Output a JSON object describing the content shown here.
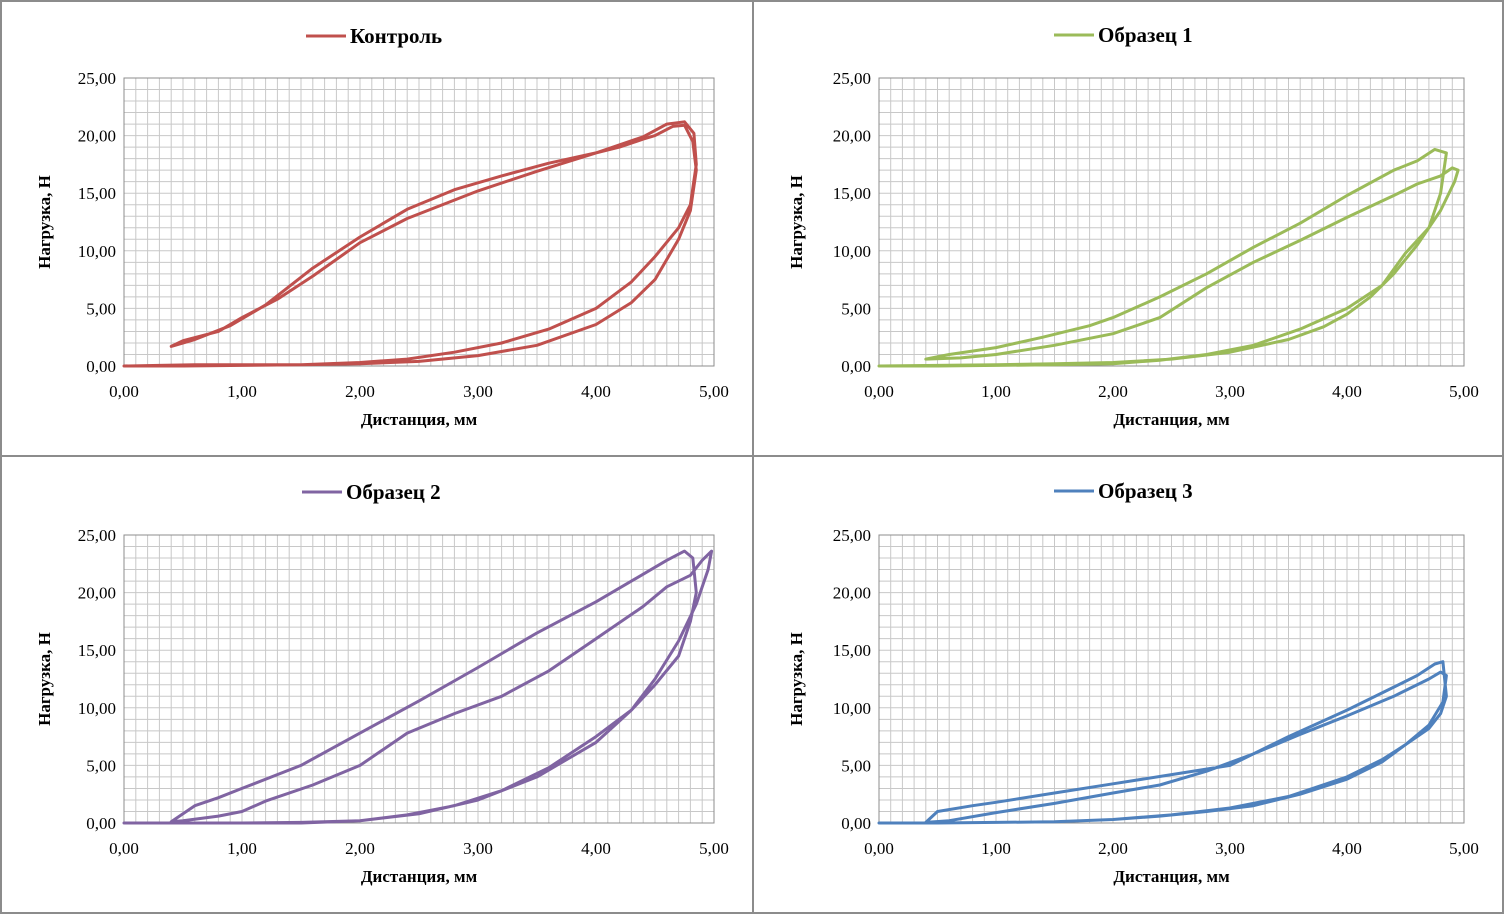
{
  "chart_data": [
    {
      "type": "line",
      "title": "",
      "xlabel": "Дистанция, мм",
      "ylabel": "Нагрузка, Н",
      "xlim": [
        0,
        5
      ],
      "ylim": [
        0,
        25
      ],
      "x_tick_labels": [
        "0,00",
        "1,00",
        "2,00",
        "3,00",
        "4,00",
        "5,00"
      ],
      "y_tick_labels": [
        "0,00",
        "5,00",
        "10,00",
        "15,00",
        "20,00",
        "25,00"
      ],
      "grid": true,
      "legend": "top",
      "color": "#c0504d",
      "series": [
        {
          "name": "Контроль",
          "x": [
            0,
            0.3,
            0.6,
            1.0,
            1.5,
            2.0,
            2.5,
            3.0,
            3.5,
            4.0,
            4.3,
            4.5,
            4.7,
            4.8,
            4.85,
            4.82,
            4.75,
            4.65,
            4.5,
            4.4,
            4.2,
            4.0,
            3.6,
            3.2,
            2.8,
            2.4,
            2.0,
            1.6,
            1.2,
            0.9,
            0.6,
            0.4,
            0.5,
            0.8,
            1.0,
            1.3,
            1.6,
            2.0,
            2.4,
            3.0,
            3.5,
            4.0,
            4.4,
            4.6,
            4.75,
            4.83,
            4.85,
            4.8,
            4.7,
            4.5,
            4.3,
            4.0,
            3.6,
            3.2,
            2.8,
            2.4,
            2.0,
            1.5,
            1.0,
            0.5,
            0
          ],
          "y": [
            0,
            0.05,
            0.1,
            0.1,
            0.1,
            0.2,
            0.4,
            0.9,
            1.8,
            3.6,
            5.5,
            7.5,
            11.0,
            13.5,
            17.0,
            19.5,
            20.9,
            20.8,
            20.0,
            19.7,
            19.0,
            18.5,
            17.6,
            16.5,
            15.3,
            13.6,
            11.2,
            8.5,
            5.3,
            3.5,
            2.3,
            1.7,
            2.2,
            3.0,
            4.2,
            5.8,
            7.8,
            10.7,
            12.8,
            15.2,
            16.9,
            18.5,
            19.9,
            21.0,
            21.2,
            20.2,
            17.5,
            14.0,
            12.0,
            9.5,
            7.3,
            5.0,
            3.2,
            2.0,
            1.2,
            0.6,
            0.3,
            0.1,
            0.05,
            0,
            0
          ]
        }
      ]
    },
    {
      "type": "line",
      "title": "",
      "xlabel": "Дистанция, мм",
      "ylabel": "Нагрузка, Н",
      "xlim": [
        0,
        5
      ],
      "ylim": [
        0,
        25
      ],
      "x_tick_labels": [
        "0,00",
        "1,00",
        "2,00",
        "3,00",
        "4,00",
        "5,00"
      ],
      "y_tick_labels": [
        "0,00",
        "5,00",
        "10,00",
        "15,00",
        "20,00",
        "25,00"
      ],
      "grid": true,
      "legend": "top",
      "color": "#9bbb59",
      "series": [
        {
          "name": "Образец 1",
          "x": [
            0,
            0.5,
            1.0,
            1.5,
            2.0,
            2.5,
            3.0,
            3.5,
            3.8,
            4.0,
            4.2,
            4.4,
            4.6,
            4.8,
            4.92,
            4.95,
            4.9,
            4.8,
            4.6,
            4.4,
            4.0,
            3.6,
            3.2,
            2.8,
            2.4,
            2.0,
            1.5,
            1.0,
            0.7,
            0.4,
            0.6,
            1.0,
            1.4,
            1.8,
            2.0,
            2.4,
            2.8,
            3.2,
            3.6,
            4.0,
            4.4,
            4.6,
            4.75,
            4.85,
            4.8,
            4.7,
            4.5,
            4.3,
            4.0,
            3.6,
            3.2,
            2.8,
            2.4,
            2.0,
            1.5,
            1.0,
            0.5,
            0
          ],
          "y": [
            0,
            0.05,
            0.1,
            0.2,
            0.3,
            0.6,
            1.2,
            2.3,
            3.4,
            4.5,
            6.0,
            8.0,
            10.5,
            13.5,
            16.0,
            17.0,
            17.2,
            16.5,
            15.8,
            14.8,
            12.9,
            10.9,
            9.0,
            6.8,
            4.2,
            2.8,
            1.8,
            1.0,
            0.7,
            0.6,
            1.0,
            1.6,
            2.5,
            3.5,
            4.2,
            6.0,
            8.0,
            10.3,
            12.4,
            14.8,
            17.0,
            17.8,
            18.8,
            18.5,
            15.0,
            12.0,
            9.8,
            7.0,
            5.0,
            3.2,
            1.8,
            1.0,
            0.5,
            0.2,
            0.1,
            0.05,
            0,
            0
          ]
        }
      ]
    },
    {
      "type": "line",
      "title": "",
      "xlabel": "Дистанция, мм",
      "ylabel": "Нагрузка, Н",
      "xlim": [
        0,
        5
      ],
      "ylim": [
        0,
        25
      ],
      "x_tick_labels": [
        "0,00",
        "1,00",
        "2,00",
        "3,00",
        "4,00",
        "5,00"
      ],
      "y_tick_labels": [
        "0,00",
        "5,00",
        "10,00",
        "15,00",
        "20,00",
        "25,00"
      ],
      "grid": true,
      "legend": "top",
      "color": "#8064a2",
      "series": [
        {
          "name": "Образец 2",
          "x": [
            0,
            0.3,
            0.6,
            1.0,
            1.5,
            2.0,
            2.5,
            3.0,
            3.5,
            4.0,
            4.3,
            4.5,
            4.7,
            4.85,
            4.95,
            4.98,
            4.9,
            4.8,
            4.6,
            4.4,
            4.0,
            3.6,
            3.2,
            2.8,
            2.4,
            2.0,
            1.6,
            1.2,
            1.0,
            0.8,
            0.5,
            0.4,
            0.6,
            0.8,
            1.0,
            1.5,
            2.0,
            2.5,
            3.0,
            3.5,
            4.0,
            4.4,
            4.6,
            4.75,
            4.82,
            4.85,
            4.8,
            4.7,
            4.5,
            4.3,
            4.0,
            3.6,
            3.2,
            2.8,
            2.4,
            2.0,
            1.5,
            1.0,
            0.5,
            0
          ],
          "y": [
            0,
            0,
            0,
            0,
            0,
            0.2,
            0.8,
            2.0,
            4.0,
            7.0,
            9.8,
            12.5,
            15.8,
            19.0,
            22.0,
            23.6,
            22.8,
            21.5,
            20.5,
            18.8,
            16.0,
            13.2,
            11.0,
            9.5,
            7.8,
            5.0,
            3.3,
            1.9,
            1.0,
            0.6,
            0.2,
            0.1,
            1.5,
            2.2,
            3.0,
            5.0,
            7.8,
            10.6,
            13.5,
            16.5,
            19.2,
            21.6,
            22.8,
            23.6,
            23.0,
            20.0,
            17.5,
            14.5,
            12.0,
            9.8,
            7.5,
            4.8,
            2.8,
            1.5,
            0.7,
            0.2,
            0.05,
            0,
            0,
            0
          ]
        }
      ]
    },
    {
      "type": "line",
      "title": "",
      "xlabel": "Дистанция, мм",
      "ylabel": "Нагрузка, Н",
      "xlim": [
        0,
        5
      ],
      "ylim": [
        0,
        25
      ],
      "x_tick_labels": [
        "0,00",
        "1,00",
        "2,00",
        "3,00",
        "4,00",
        "5,00"
      ],
      "y_tick_labels": [
        "0,00",
        "5,00",
        "10,00",
        "15,00",
        "20,00",
        "25,00"
      ],
      "grid": true,
      "legend": "top",
      "color": "#4f81bd",
      "series": [
        {
          "name": "Образец 3",
          "x": [
            0,
            0.5,
            1.0,
            1.5,
            2.0,
            2.5,
            3.0,
            3.5,
            4.0,
            4.3,
            4.5,
            4.7,
            4.82,
            4.85,
            4.8,
            4.7,
            4.5,
            4.4,
            4.0,
            3.6,
            3.2,
            2.8,
            2.4,
            2.0,
            1.5,
            1.0,
            0.6,
            0.4,
            0.5,
            0.8,
            1.0,
            1.5,
            2.0,
            2.5,
            3.0,
            3.5,
            4.0,
            4.4,
            4.6,
            4.75,
            4.82,
            4.85,
            4.8,
            4.7,
            4.5,
            4.3,
            4.0,
            3.6,
            3.2,
            2.8,
            2.4,
            2.0,
            1.5,
            1.0,
            0.5,
            0
          ],
          "y": [
            0,
            0,
            0.05,
            0.1,
            0.3,
            0.7,
            1.3,
            2.3,
            4.0,
            5.5,
            6.8,
            8.5,
            10.5,
            12.8,
            13.1,
            12.5,
            11.5,
            11.0,
            9.3,
            7.7,
            6.0,
            4.5,
            3.3,
            2.6,
            1.7,
            0.9,
            0.2,
            0.05,
            1.0,
            1.5,
            1.8,
            2.6,
            3.4,
            4.2,
            5.0,
            7.5,
            9.8,
            11.8,
            12.8,
            13.8,
            14.0,
            11.0,
            9.5,
            8.2,
            6.8,
            5.3,
            3.8,
            2.5,
            1.5,
            1.0,
            0.6,
            0.3,
            0.1,
            0.05,
            0,
            0
          ]
        }
      ]
    }
  ]
}
